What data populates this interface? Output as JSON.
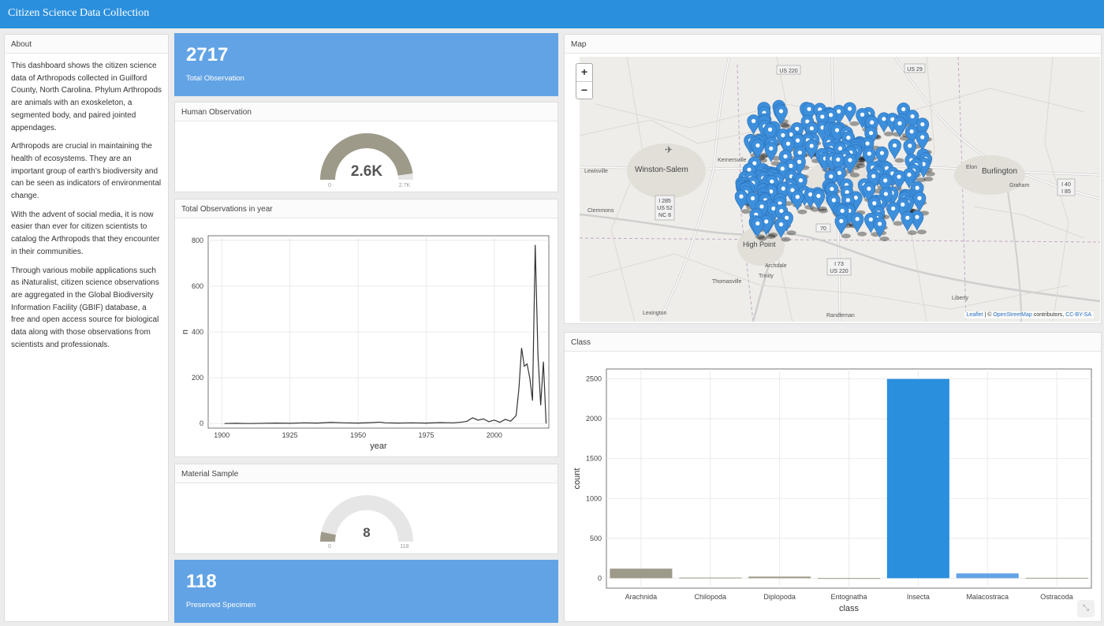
{
  "app": {
    "title": "Citizen Science Data Collection"
  },
  "about": {
    "header": "About",
    "paragraphs": [
      "This dashboard shows the citizen science data of Arthropods collected in Guilford County, North Carolina. Phylum Arthropods are animals with an exoskeleton, a segmented body, and paired jointed appendages.",
      "Arthropods are crucial in maintaining the health of ecosystems. They are an important group of earth’s biodiversity and can be seen as indicators of environmental change.",
      "With the advent of social media, it is now easier than ever for citizen scientists to catalog the Arthropods that they encounter in their communities.",
      "Through various mobile applications such as iNaturalist, citizen science observations are aggregated in the Global Biodiversity Information Facility (GBIF) database, a free and open access source for biological data along with those observations from scientists and professionals."
    ]
  },
  "total_obs": {
    "value": "2717",
    "caption": "Total Observation"
  },
  "human_obs": {
    "header": "Human Observation",
    "label": "2.6K",
    "value": 2600,
    "min": "0",
    "max": "2.7K",
    "max_value": 2717,
    "fill_color": "#9e9a8a"
  },
  "year_chart": {
    "header": "Total Observations in year"
  },
  "material": {
    "header": "Material Sample",
    "label": "8",
    "value": 8,
    "min": "0",
    "max": "118",
    "max_value": 118,
    "fill_color": "#9e9a8a"
  },
  "preserved": {
    "value": "118",
    "caption": "Preserved Specimen"
  },
  "map": {
    "header": "Map",
    "zoom_in": "+",
    "zoom_out": "−",
    "cities": [
      "Winston-Salem",
      "Burlington",
      "High Point",
      "Kernersville",
      "Lewisville",
      "Clemmons",
      "Elon",
      "Graham",
      "Archdale",
      "Trinity",
      "Thomasville",
      "Liberty",
      "Lexington",
      "Randleman"
    ],
    "road_labels": [
      "US 220",
      "US 29",
      "I 285",
      "US 52",
      "NC 8",
      "I 73",
      "US 220",
      "I 40",
      "I 85",
      "70"
    ],
    "attribution": {
      "leaflet": "Leaflet",
      "sep": " | © ",
      "osm": "OpenStreetMap",
      "contrib": " contributors, ",
      "license": "CC-BY-SA"
    },
    "marker_color": "#3d8fdc"
  },
  "class_chart": {
    "header": "Class"
  },
  "chart_data": [
    {
      "type": "line",
      "title": "",
      "xlabel": "year",
      "ylabel": "n",
      "xlim": [
        1895,
        2020
      ],
      "ylim": [
        -20,
        820
      ],
      "xticks": [
        1900,
        1925,
        1950,
        1975,
        2000
      ],
      "yticks": [
        0,
        200,
        400,
        600,
        800
      ],
      "grid": true,
      "x": [
        1901,
        1905,
        1910,
        1920,
        1925,
        1930,
        1935,
        1940,
        1945,
        1950,
        1955,
        1958,
        1960,
        1965,
        1970,
        1975,
        1980,
        1985,
        1988,
        1990,
        1992,
        1994,
        1996,
        1998,
        2000,
        2002,
        2004,
        2006,
        2008,
        2009,
        2010,
        2011,
        2012,
        2013,
        2014,
        2015,
        2016,
        2017,
        2018,
        2019
      ],
      "y": [
        0,
        1,
        0,
        2,
        1,
        3,
        2,
        5,
        3,
        2,
        4,
        6,
        3,
        2,
        3,
        2,
        4,
        3,
        6,
        10,
        25,
        15,
        20,
        8,
        15,
        5,
        18,
        10,
        35,
        150,
        330,
        250,
        260,
        200,
        100,
        780,
        300,
        80,
        270,
        0
      ],
      "color": "#333333"
    },
    {
      "type": "bar",
      "title": "",
      "xlabel": "class",
      "ylabel": "count",
      "ylim": [
        -125,
        2625
      ],
      "yticks": [
        0,
        500,
        1000,
        1500,
        2000,
        2500
      ],
      "categories": [
        "Arachnida",
        "Chilopoda",
        "Diplopoda",
        "Entognatha",
        "Insecta",
        "Malacostraca",
        "Ostracoda"
      ],
      "values": [
        120,
        8,
        20,
        2,
        2500,
        60,
        5
      ],
      "colors": [
        "#9e9a8a",
        "#9e9a8a",
        "#9e9a8a",
        "#9e9a8a",
        "#2a8fdd",
        "#62a3e5",
        "#9e9a8a"
      ],
      "grid": true
    }
  ]
}
